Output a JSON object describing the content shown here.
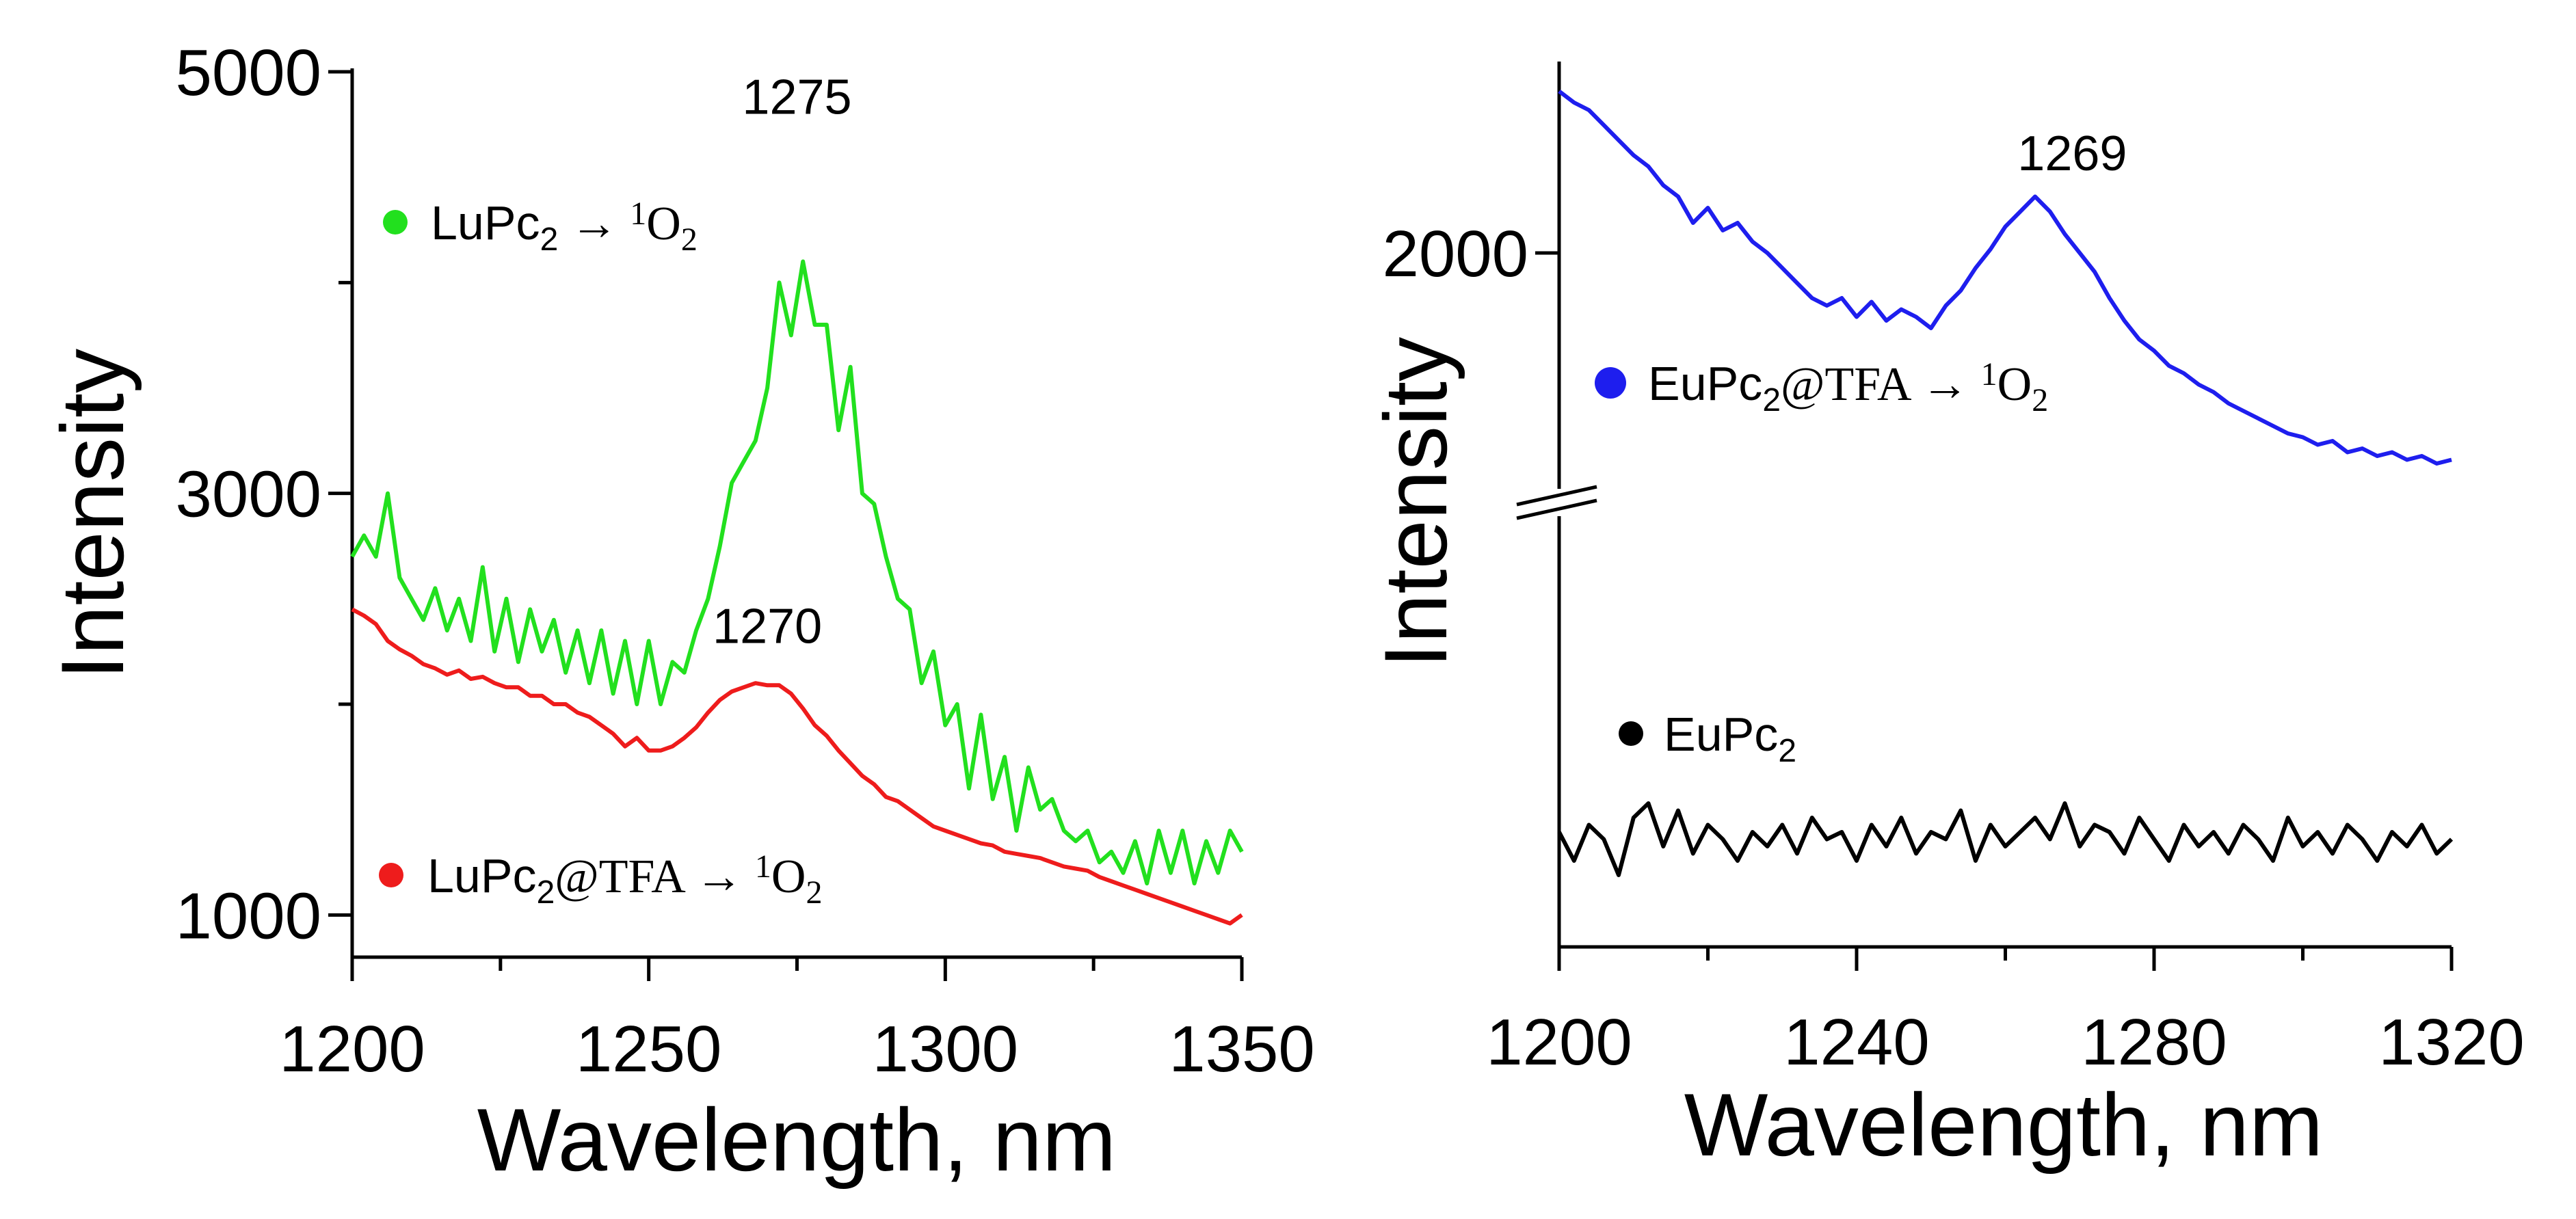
{
  "chart_data": [
    {
      "type": "line",
      "xlabel": "Wavelength, nm",
      "ylabel": "Intensity",
      "xlim": [
        1200,
        1350
      ],
      "ylim": [
        800,
        5000
      ],
      "xticks": [
        "1200",
        "1250",
        "1300",
        "1350"
      ],
      "yticks": [
        "1000",
        "3000",
        "5000"
      ],
      "peaks": [
        {
          "label": "1275",
          "x": 1275,
          "y": 4800
        },
        {
          "label": "1270",
          "x": 1270,
          "y": 2290
        }
      ],
      "series": [
        {
          "name": "LuPc2 → 1O2",
          "legend_parts": [
            "LuPc",
            "2",
            " → ",
            "1",
            "O",
            "2"
          ],
          "color": "#22e01e",
          "x": [
            1200,
            1202,
            1204,
            1206,
            1208,
            1210,
            1212,
            1214,
            1216,
            1218,
            1220,
            1222,
            1224,
            1226,
            1228,
            1230,
            1232,
            1234,
            1236,
            1238,
            1240,
            1242,
            1244,
            1246,
            1248,
            1250,
            1252,
            1254,
            1256,
            1258,
            1260,
            1262,
            1264,
            1266,
            1268,
            1270,
            1272,
            1274,
            1276,
            1278,
            1280,
            1282,
            1284,
            1286,
            1288,
            1290,
            1292,
            1294,
            1296,
            1298,
            1300,
            1302,
            1304,
            1306,
            1308,
            1310,
            1312,
            1314,
            1316,
            1318,
            1320,
            1322,
            1324,
            1326,
            1328,
            1330,
            1332,
            1334,
            1336,
            1338,
            1340,
            1342,
            1344,
            1346,
            1348,
            1350
          ],
          "values": [
            2700,
            2800,
            2700,
            3000,
            2600,
            2500,
            2400,
            2550,
            2350,
            2500,
            2300,
            2650,
            2250,
            2500,
            2200,
            2450,
            2250,
            2400,
            2150,
            2350,
            2100,
            2350,
            2050,
            2300,
            2000,
            2300,
            2000,
            2200,
            2150,
            2350,
            2500,
            2750,
            3050,
            3150,
            3250,
            3500,
            4000,
            3750,
            4100,
            3800,
            3800,
            3300,
            3600,
            3000,
            2950,
            2700,
            2500,
            2450,
            2100,
            2250,
            1900,
            2000,
            1600,
            1950,
            1550,
            1750,
            1400,
            1700,
            1500,
            1550,
            1400,
            1350,
            1400,
            1250,
            1300,
            1200,
            1350,
            1150,
            1400,
            1200,
            1400,
            1150,
            1350,
            1200,
            1400,
            1300
          ]
        },
        {
          "name": "LuPc2@TFA → 1O2",
          "legend_parts": [
            "LuPc",
            "2",
            "@TFA → ",
            "1",
            "O",
            "2"
          ],
          "color": "#ee1c1c",
          "x": [
            1200,
            1202,
            1204,
            1206,
            1208,
            1210,
            1212,
            1214,
            1216,
            1218,
            1220,
            1222,
            1224,
            1226,
            1228,
            1230,
            1232,
            1234,
            1236,
            1238,
            1240,
            1242,
            1244,
            1246,
            1248,
            1250,
            1252,
            1254,
            1256,
            1258,
            1260,
            1262,
            1264,
            1266,
            1268,
            1270,
            1272,
            1274,
            1276,
            1278,
            1280,
            1282,
            1284,
            1286,
            1288,
            1290,
            1292,
            1294,
            1296,
            1298,
            1300,
            1302,
            1304,
            1306,
            1308,
            1310,
            1312,
            1314,
            1316,
            1318,
            1320,
            1322,
            1324,
            1326,
            1328,
            1330,
            1332,
            1334,
            1336,
            1338,
            1340,
            1342,
            1344,
            1346,
            1348,
            1350
          ],
          "values": [
            2450,
            2420,
            2380,
            2300,
            2260,
            2230,
            2190,
            2170,
            2140,
            2160,
            2120,
            2130,
            2100,
            2080,
            2080,
            2040,
            2040,
            2000,
            2000,
            1960,
            1940,
            1900,
            1860,
            1800,
            1840,
            1780,
            1780,
            1800,
            1840,
            1890,
            1960,
            2020,
            2060,
            2080,
            2100,
            2090,
            2090,
            2050,
            1980,
            1900,
            1850,
            1780,
            1720,
            1660,
            1620,
            1560,
            1540,
            1500,
            1460,
            1420,
            1400,
            1380,
            1360,
            1340,
            1330,
            1300,
            1290,
            1280,
            1270,
            1250,
            1230,
            1220,
            1210,
            1180,
            1160,
            1140,
            1120,
            1100,
            1080,
            1060,
            1040,
            1020,
            1000,
            980,
            960,
            1000
          ]
        }
      ]
    },
    {
      "type": "line",
      "xlabel": "Wavelength, nm",
      "ylabel": "Intensity",
      "xlim": [
        1200,
        1320
      ],
      "ylim": [
        1000,
        2500
      ],
      "axis_break": true,
      "xticks": [
        "1200",
        "1240",
        "1280",
        "1320"
      ],
      "yticks": [
        "2000"
      ],
      "peaks": [
        {
          "label": "1269",
          "x": 1269,
          "y": 2220
        }
      ],
      "series": [
        {
          "name": "EuPc2@TFA → 1O2",
          "legend_parts": [
            "EuPc",
            "2",
            "@TFA → ",
            "1",
            "O",
            "2"
          ],
          "color": "#1e1eee",
          "x": [
            1200,
            1202,
            1204,
            1206,
            1208,
            1210,
            1212,
            1214,
            1216,
            1218,
            1220,
            1222,
            1224,
            1226,
            1228,
            1230,
            1232,
            1234,
            1236,
            1238,
            1240,
            1242,
            1244,
            1246,
            1248,
            1250,
            1252,
            1254,
            1256,
            1258,
            1260,
            1262,
            1264,
            1266,
            1268,
            1270,
            1272,
            1274,
            1276,
            1278,
            1280,
            1282,
            1284,
            1286,
            1288,
            1290,
            1292,
            1294,
            1296,
            1298,
            1300,
            1302,
            1304,
            1306,
            1308,
            1310,
            1312,
            1314,
            1316,
            1318,
            1320
          ],
          "values": [
            2430,
            2400,
            2380,
            2340,
            2300,
            2260,
            2230,
            2180,
            2150,
            2080,
            2120,
            2060,
            2080,
            2030,
            2000,
            1960,
            1920,
            1880,
            1860,
            1880,
            1830,
            1870,
            1820,
            1850,
            1830,
            1800,
            1860,
            1900,
            1960,
            2010,
            2070,
            2110,
            2150,
            2110,
            2050,
            2000,
            1950,
            1880,
            1820,
            1770,
            1740,
            1700,
            1680,
            1650,
            1630,
            1600,
            1580,
            1560,
            1540,
            1520,
            1510,
            1490,
            1500,
            1470,
            1480,
            1460,
            1470,
            1450,
            1460,
            1440,
            1450
          ]
        },
        {
          "name": "EuPc2",
          "legend_parts": [
            "EuPc",
            "2"
          ],
          "color": "#000000",
          "x": [
            1200,
            1202,
            1204,
            1206,
            1208,
            1210,
            1212,
            1214,
            1216,
            1218,
            1220,
            1222,
            1224,
            1226,
            1228,
            1230,
            1232,
            1234,
            1236,
            1238,
            1240,
            1242,
            1244,
            1246,
            1248,
            1250,
            1252,
            1254,
            1256,
            1258,
            1260,
            1262,
            1264,
            1266,
            1268,
            1270,
            1272,
            1274,
            1276,
            1278,
            1280,
            1282,
            1284,
            1286,
            1288,
            1290,
            1292,
            1294,
            1296,
            1298,
            1300,
            1302,
            1304,
            1306,
            1308,
            1310,
            1312,
            1314,
            1316,
            1318,
            1320
          ],
          "values": [
            1160,
            1120,
            1170,
            1150,
            1100,
            1180,
            1200,
            1140,
            1190,
            1130,
            1170,
            1150,
            1120,
            1160,
            1140,
            1170,
            1130,
            1180,
            1150,
            1160,
            1120,
            1170,
            1140,
            1180,
            1130,
            1160,
            1150,
            1190,
            1120,
            1170,
            1140,
            1160,
            1180,
            1150,
            1200,
            1140,
            1170,
            1160,
            1130,
            1180,
            1150,
            1120,
            1170,
            1140,
            1160,
            1130,
            1170,
            1150,
            1120,
            1180,
            1140,
            1160,
            1130,
            1170,
            1150,
            1120,
            1160,
            1140,
            1170,
            1130,
            1150
          ]
        }
      ]
    }
  ]
}
